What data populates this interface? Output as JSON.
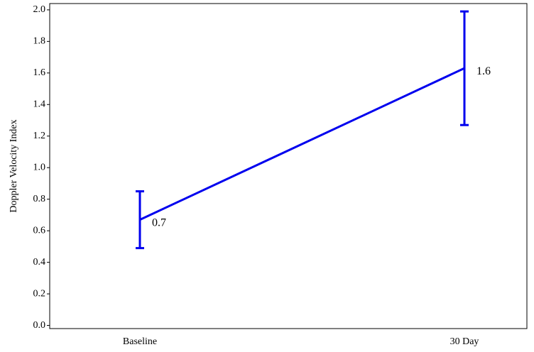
{
  "chart_data": {
    "type": "line",
    "y_label": "Doppler Velocity Index",
    "categories": [
      "Baseline",
      "30 Day"
    ],
    "values": [
      0.67,
      1.63
    ],
    "errors": [
      0.18,
      0.36
    ],
    "value_labels": [
      "0.7",
      "1.6"
    ],
    "color": "#0000ee",
    "ylim": [
      -0.02,
      2.04
    ],
    "yticks": [
      {
        "value": 0,
        "label": "0.0"
      },
      0.2,
      0.4,
      0.6,
      0.8,
      {
        "value": 1,
        "label": "1.0"
      },
      1.2,
      1.4,
      1.6,
      1.8,
      {
        "value": 2,
        "label": "2.0"
      }
    ]
  }
}
